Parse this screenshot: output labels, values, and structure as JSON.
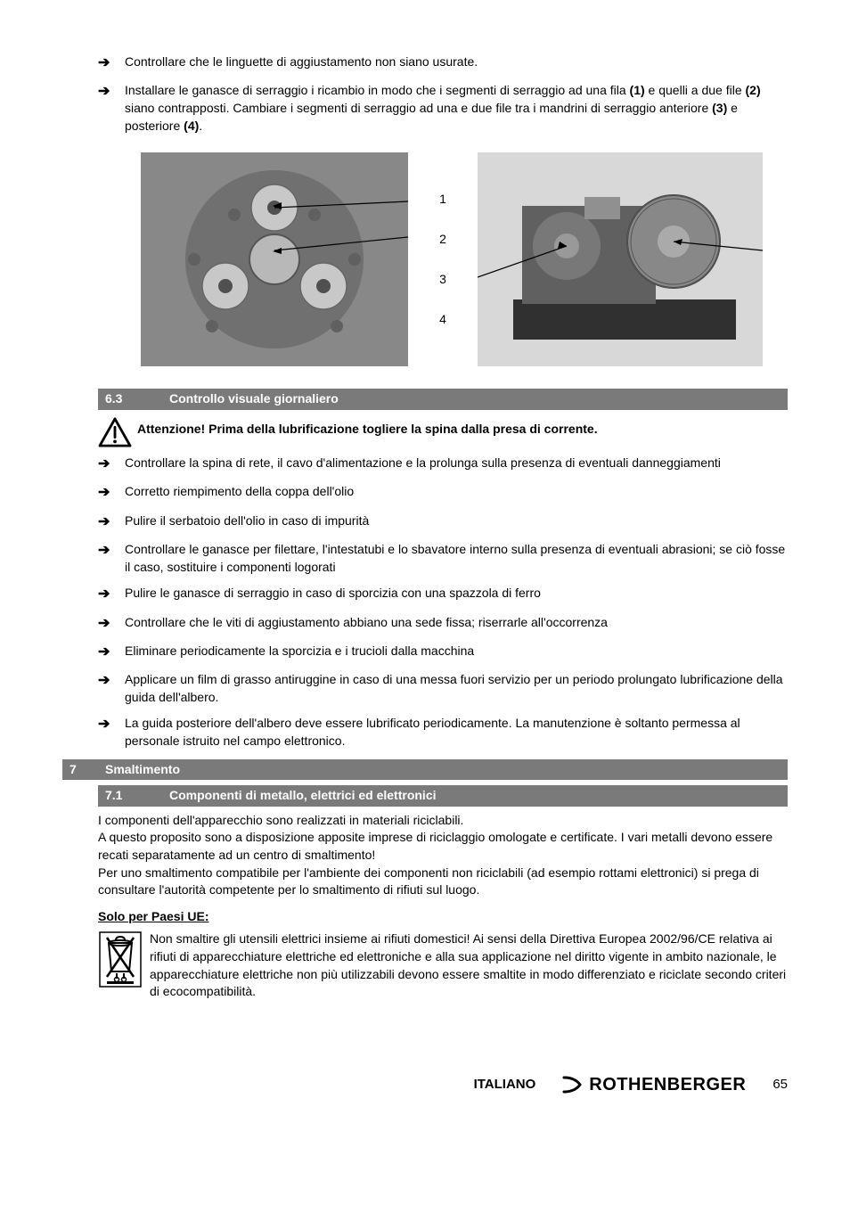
{
  "bullets_top": [
    "Controllare che le linguette di aggiustamento non siano usurate.",
    "Installare le ganasce di serraggio i ricambio in modo che i segmenti di serraggio ad una fila (1) e quelli a due file (2) siano contrapposti. Cambiare i segmenti di serraggio ad una e due file tra i mandrini di serraggio anteriore (3) e posteriore (4)."
  ],
  "image_labels": [
    "1",
    "2",
    "3",
    "4"
  ],
  "section_63": {
    "num": "6.3",
    "title": "Controllo visuale giornaliero"
  },
  "warning_text": "Attenzione! Prima della lubrificazione togliere la spina dalla presa di corrente.",
  "bullets_63": [
    "Controllare la spina di rete, il cavo d'alimentazione e la prolunga sulla presenza di eventuali danneggiamenti",
    "Corretto riempimento della coppa dell'olio",
    "Pulire il serbatoio dell'olio in caso di impurità",
    "Controllare le ganasce per filettare, l'intestatubi e lo sbavatore interno sulla presenza di eventuali abrasioni; se ciò fosse il caso, sostituire i componenti logorati",
    "Pulire le ganasce di serraggio in caso di sporcizia con una spazzola di ferro",
    "Controllare che le viti di aggiustamento abbiano una sede fissa; riserrarle all'occorrenza",
    "Eliminare periodicamente la sporcizia e i trucioli dalla macchina",
    "Applicare un film di grasso antiruggine in caso di una messa fuori servizio per un periodo prolungato lubrificazione della guida dell'albero.",
    "La guida posteriore dell'albero deve essere lubrificato periodicamente. La manutenzione è soltanto permessa al personale istruito nel campo elettronico."
  ],
  "section_7": {
    "num": "7",
    "title": "Smaltimento"
  },
  "section_71": {
    "num": "7.1",
    "title": "Componenti di metallo, elettrici ed elettronici"
  },
  "body_71": "I componenti dell'apparecchio sono realizzati in materiali riciclabili.\nA questo proposito sono a disposizione apposite imprese di riciclaggio omologate e certificate. I vari metalli devono essere recati separatamente ad un centro di smaltimento!\nPer uno smaltimento compatibile per l'ambiente dei componenti non riciclabili (ad esempio rottami elettronici) si prega di consultare l'autorità competente per lo smaltimento di rifiuti sul luogo.",
  "ue_heading": "Solo per Paesi UE:",
  "ue_text": "Non smaltire gli utensili elettrici insieme ai rifiuti domestici! Ai sensi della Direttiva Europea 2002/96/CE relativa ai rifiuti di apparecchiature elettriche ed elettroniche e alla sua applicazione nel diritto vigente in ambito nazionale, le apparecchiature elettriche non più utilizzabili devono essere smaltite in modo differenziato e riciclate secondo criteri di ecocompatibilità.",
  "footer": {
    "language": "ITALIANO",
    "brand": "ROTHENBERGER",
    "page": "65"
  },
  "colors": {
    "section_bg": "#7a7a7a",
    "section_fg": "#ffffff",
    "text": "#000000",
    "image_bg": "#b0b0b0"
  }
}
